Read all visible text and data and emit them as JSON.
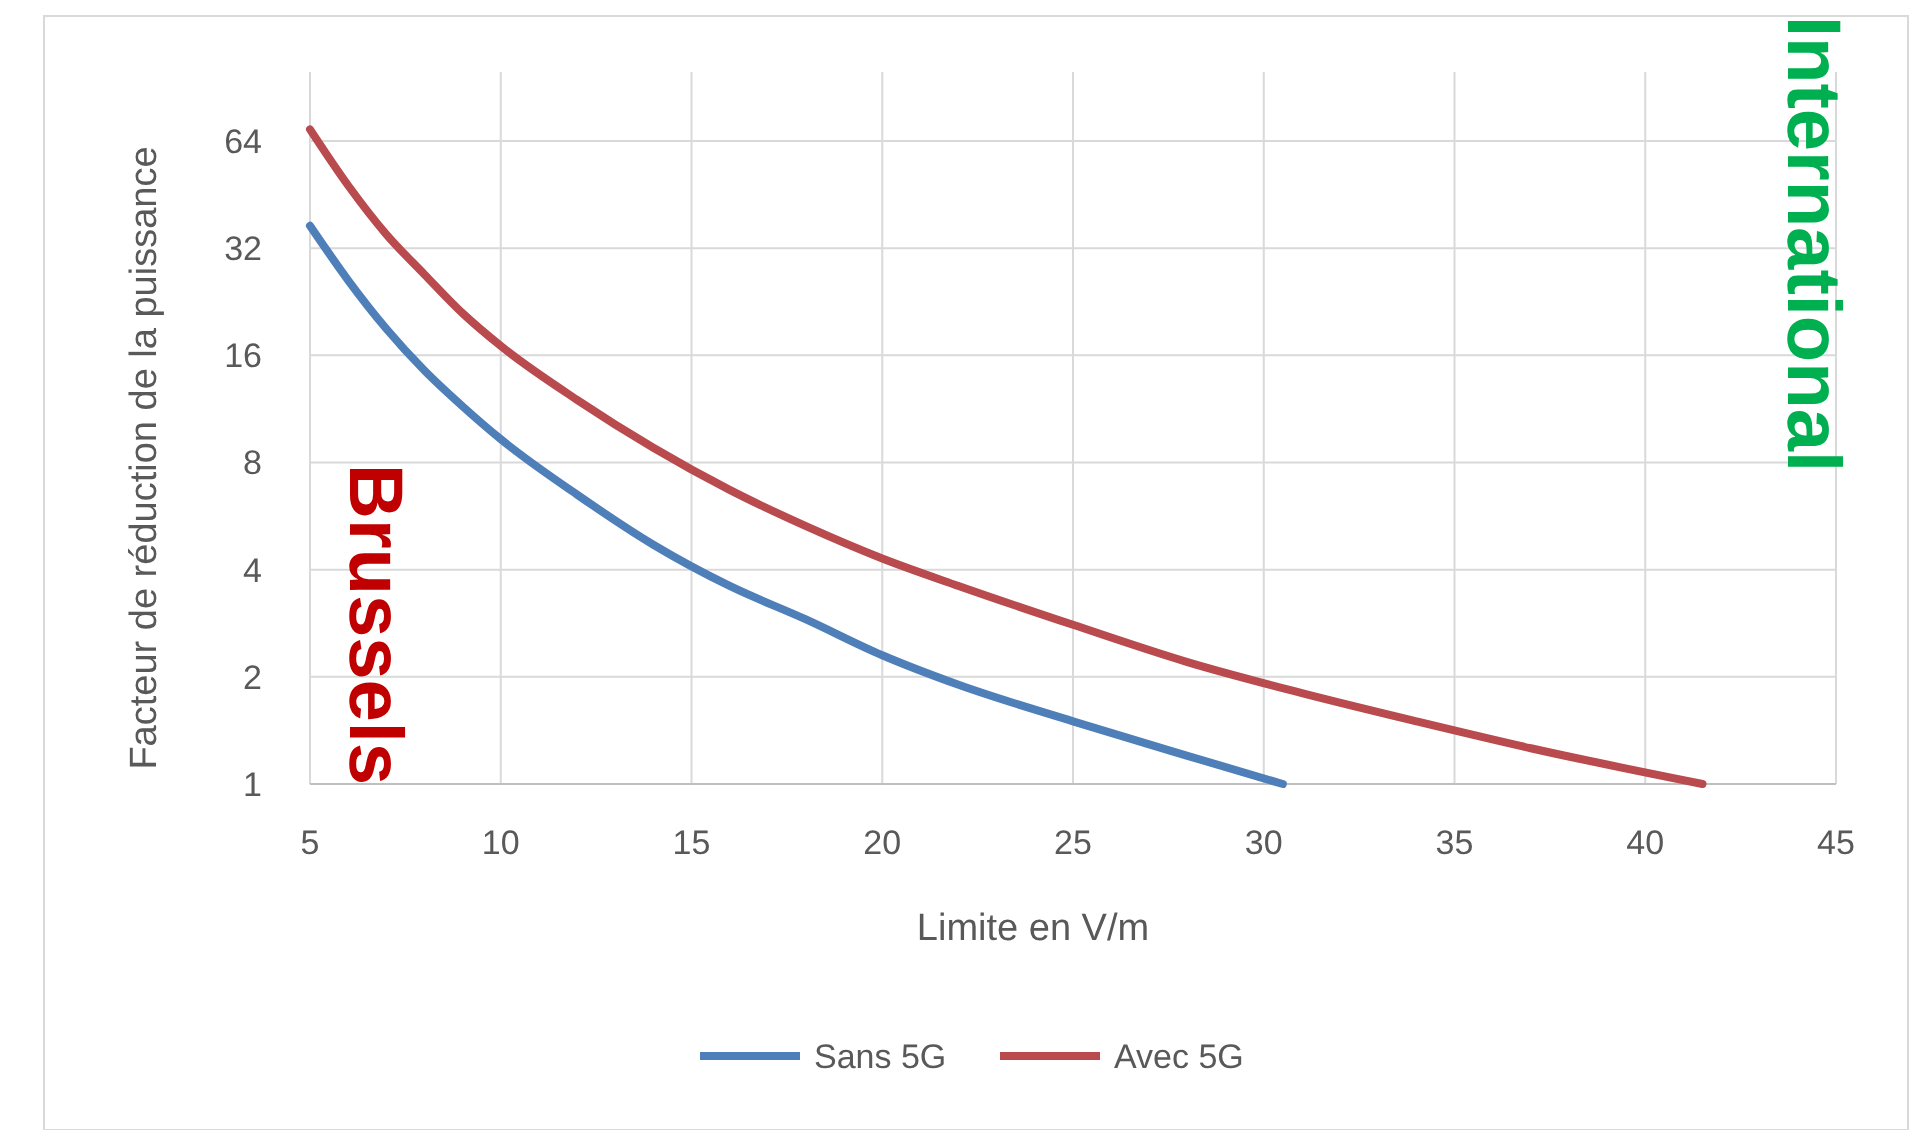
{
  "chart_data": {
    "type": "line",
    "xlabel": "Limite en V/m",
    "ylabel": "Facteur de réduction de la puissance",
    "xlim": [
      5,
      45
    ],
    "xticks": [
      5,
      10,
      15,
      20,
      25,
      30,
      35,
      40,
      45
    ],
    "ylim": [
      1,
      100
    ],
    "yticks": [
      1,
      2,
      4,
      8,
      16,
      32,
      64
    ],
    "log": true,
    "grid": true,
    "legend": "bottom",
    "marker": "none",
    "line_style": "solid",
    "series": [
      {
        "name": "Sans 5G",
        "color": "#4f7fb8",
        "x": [
          5,
          6,
          7,
          8,
          9,
          10,
          12,
          14,
          16,
          18,
          20,
          22,
          25,
          28,
          30.5
        ],
        "values": [
          37,
          26,
          19,
          14.5,
          11.5,
          9.3,
          6.5,
          4.7,
          3.6,
          2.9,
          2.3,
          1.9,
          1.5,
          1.2,
          1
        ]
      },
      {
        "name": "Avec 5G",
        "color": "#b94a4d",
        "x": [
          5,
          6,
          7,
          8,
          9,
          10,
          12,
          14,
          16,
          18,
          20,
          22,
          25,
          28,
          31,
          34,
          37,
          41.5
        ],
        "values": [
          69,
          48,
          35,
          27,
          21,
          17,
          12,
          8.8,
          6.7,
          5.3,
          4.3,
          3.6,
          2.8,
          2.2,
          1.8,
          1.5,
          1.26,
          1
        ]
      }
    ],
    "annotations": [
      "Brussels",
      "International"
    ]
  }
}
